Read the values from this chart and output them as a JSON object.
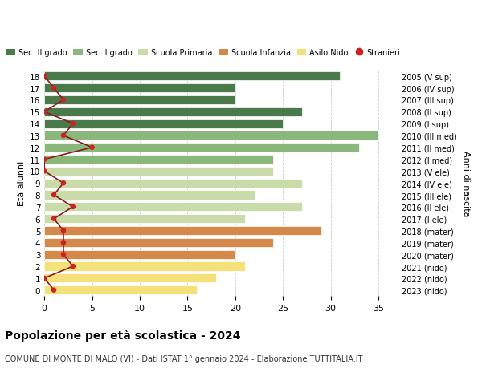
{
  "ages": [
    0,
    1,
    2,
    3,
    4,
    5,
    6,
    7,
    8,
    9,
    10,
    11,
    12,
    13,
    14,
    15,
    16,
    17,
    18
  ],
  "years": [
    "2023 (nido)",
    "2022 (nido)",
    "2021 (nido)",
    "2020 (mater)",
    "2019 (mater)",
    "2018 (mater)",
    "2017 (I ele)",
    "2016 (II ele)",
    "2015 (III ele)",
    "2014 (IV ele)",
    "2013 (V ele)",
    "2012 (I med)",
    "2011 (II med)",
    "2010 (III med)",
    "2009 (I sup)",
    "2008 (II sup)",
    "2007 (III sup)",
    "2006 (IV sup)",
    "2005 (V sup)"
  ],
  "bar_values": [
    16,
    18,
    21,
    20,
    24,
    29,
    21,
    27,
    22,
    27,
    24,
    24,
    33,
    35,
    25,
    27,
    20,
    20,
    31
  ],
  "bar_colors": [
    "#f5e17a",
    "#f5e17a",
    "#f5e17a",
    "#d4884a",
    "#d4884a",
    "#d4884a",
    "#c8dba8",
    "#c8dba8",
    "#c8dba8",
    "#c8dba8",
    "#c8dba8",
    "#8ab87a",
    "#8ab87a",
    "#8ab87a",
    "#4a7a4a",
    "#4a7a4a",
    "#4a7a4a",
    "#4a7a4a",
    "#4a7a4a"
  ],
  "stranieri": [
    1,
    0,
    3,
    2,
    2,
    2,
    1,
    3,
    1,
    2,
    0,
    0,
    5,
    2,
    3,
    0,
    2,
    1,
    0
  ],
  "legend_labels": [
    "Sec. II grado",
    "Sec. I grado",
    "Scuola Primaria",
    "Scuola Infanzia",
    "Asilo Nido",
    "Stranieri"
  ],
  "legend_colors": [
    "#4a7a4a",
    "#8ab87a",
    "#c8dba8",
    "#d4884a",
    "#f5e17a",
    "#cc2222"
  ],
  "xlim": [
    0,
    37
  ],
  "ylim": [
    -0.5,
    18.5
  ],
  "ylabel": "Età alunni",
  "right_ylabel": "Anni di nascita",
  "title": "Popolazione per età scolastica - 2024",
  "subtitle": "COMUNE DI MONTE DI MALO (VI) - Dati ISTAT 1° gennaio 2024 - Elaborazione TUTTITALIA.IT",
  "background_color": "#ffffff",
  "grid_color": "#cccccc"
}
